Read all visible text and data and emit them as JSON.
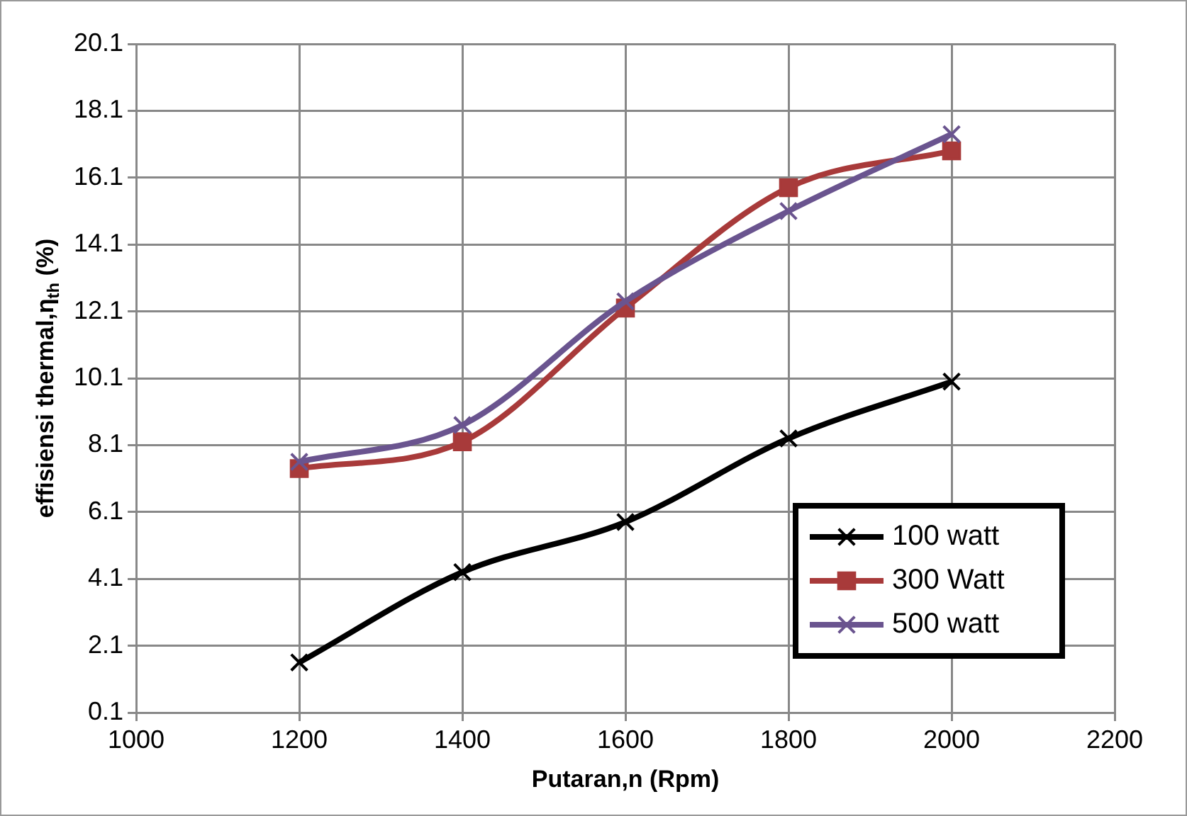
{
  "chart_data": {
    "type": "line",
    "xlabel": "Putaran,n (Rpm)",
    "ylabel": "effisiensi thermal,η$_{th}$ (%)",
    "x": [
      1200,
      1400,
      1600,
      1800,
      2000
    ],
    "series": [
      {
        "name": "100 watt",
        "color": "#000000",
        "marker": "cross",
        "values": [
          1.6,
          4.3,
          5.8,
          8.3,
          10.0
        ]
      },
      {
        "name": "300 Watt",
        "color": "#a83a3a",
        "marker": "square",
        "values": [
          7.4,
          8.2,
          12.2,
          15.8,
          16.9
        ]
      },
      {
        "name": "500 watt",
        "color": "#6a548f",
        "marker": "cross",
        "values": [
          7.6,
          8.7,
          12.4,
          15.1,
          17.4
        ]
      }
    ],
    "xlim": [
      1000,
      2200
    ],
    "xticks": [
      1000,
      1200,
      1400,
      1600,
      1800,
      2000,
      2200
    ],
    "ylim": [
      0.1,
      20.1
    ],
    "yticks": [
      0.1,
      2.1,
      4.1,
      6.1,
      8.1,
      10.1,
      12.1,
      14.1,
      16.1,
      18.1,
      20.1
    ],
    "grid": true,
    "legend": "bottom right",
    "line_style": "solid"
  }
}
